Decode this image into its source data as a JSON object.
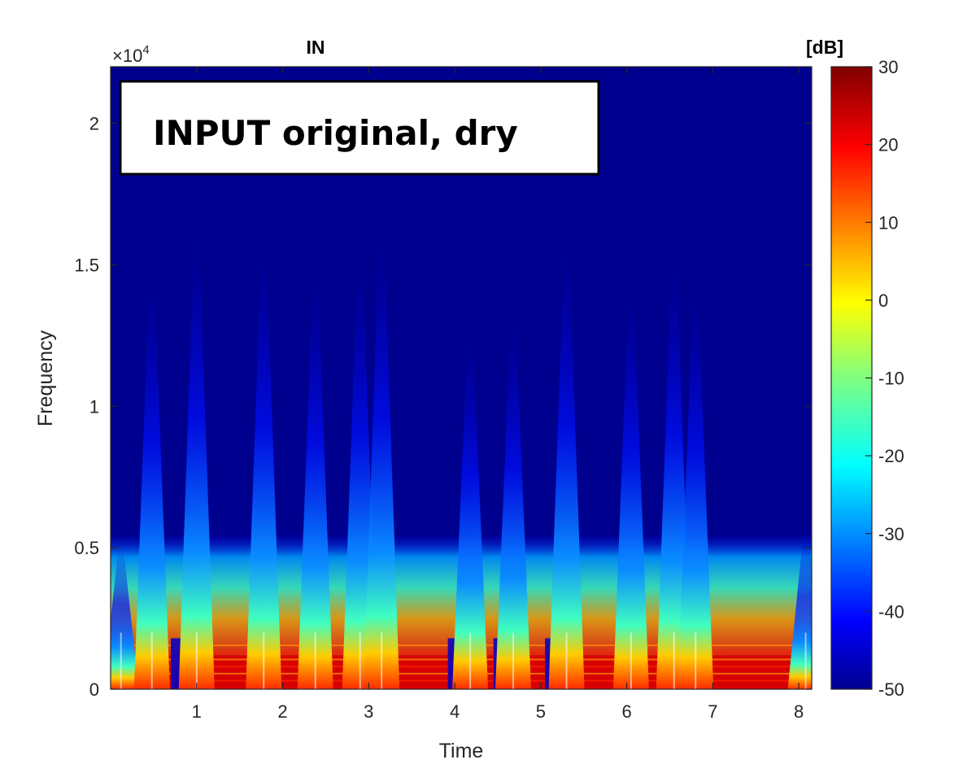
{
  "chart_data": {
    "type": "heatmap",
    "title": "IN",
    "xlabel": "Time",
    "ylabel": "Frequency",
    "y_exponent_label": "×10",
    "y_exponent_power": "4",
    "annotation": "INPUT original, dry",
    "xlim": [
      0,
      8.15
    ],
    "ylim": [
      0,
      2.2
    ],
    "x_ticks": [
      1,
      2,
      3,
      4,
      5,
      6,
      7,
      8
    ],
    "y_ticks": [
      0,
      0.5,
      1,
      1.5,
      2
    ],
    "colorbar": {
      "label": "[dB]",
      "range": [
        -50,
        30
      ],
      "ticks": [
        30,
        20,
        10,
        0,
        -10,
        -20,
        -30,
        -40,
        -50
      ],
      "colormap": "jet"
    },
    "note_onsets": [
      0.12,
      0.48,
      1.0,
      1.78,
      2.38,
      2.9,
      3.15,
      4.18,
      4.68,
      5.3,
      6.05,
      6.55,
      6.8,
      8.08
    ],
    "background_color": "#00008f"
  }
}
